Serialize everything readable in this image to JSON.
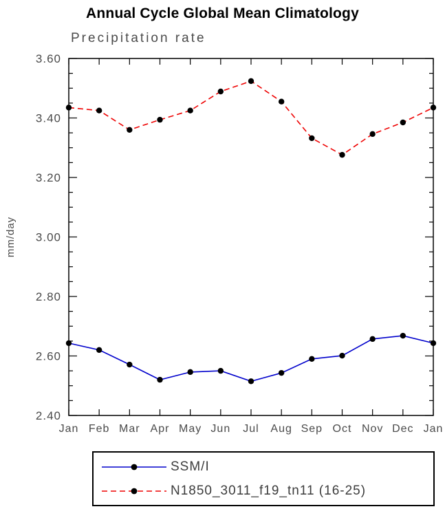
{
  "chart_data": {
    "type": "line",
    "title": "Annual Cycle Global Mean Climatology",
    "subtitle": "Precipitation rate",
    "ylabel": "mm/day",
    "xlabel": "",
    "ylim": [
      2.4,
      3.6
    ],
    "ytick_step": 0.2,
    "ytick_minor_step": 0.05,
    "ytick_labels": [
      "2.40",
      "2.60",
      "2.80",
      "3.00",
      "3.20",
      "3.40",
      "3.60"
    ],
    "categories": [
      "Jan",
      "Feb",
      "Mar",
      "Apr",
      "May",
      "Jun",
      "Jul",
      "Aug",
      "Sep",
      "Oct",
      "Nov",
      "Dec",
      "Jan"
    ],
    "series": [
      {
        "name": "SSM/I",
        "color": "#0000cc",
        "style": "solid",
        "values": [
          2.643,
          2.62,
          2.571,
          2.52,
          2.546,
          2.55,
          2.515,
          2.543,
          2.59,
          2.601,
          2.657,
          2.668,
          2.643
        ]
      },
      {
        "name": "N1850_3011_f19_tn11 (16-25)",
        "color": "#ee0000",
        "style": "dashed",
        "values": [
          3.435,
          3.425,
          3.36,
          3.394,
          3.425,
          3.489,
          3.524,
          3.455,
          3.332,
          3.276,
          3.346,
          3.385,
          3.435
        ]
      }
    ],
    "marker_color": "#000000",
    "grid": false,
    "legend_position": "bottom"
  }
}
